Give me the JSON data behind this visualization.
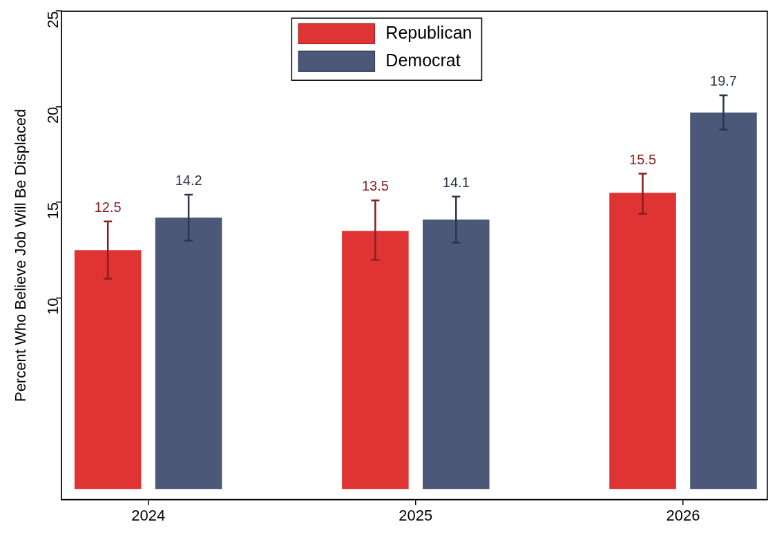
{
  "chart_data": {
    "type": "bar",
    "ylabel": "Percent Who Believe Job Will Be Displaced",
    "categories": [
      "2024",
      "2025",
      "2026"
    ],
    "series": [
      {
        "name": "Republican",
        "color": "#e03434",
        "values": [
          12.5,
          13.5,
          15.5
        ],
        "errors": [
          [
            11.0,
            14.0
          ],
          [
            12.0,
            15.1
          ],
          [
            14.4,
            16.5
          ]
        ]
      },
      {
        "name": "Democrat",
        "color": "#4b5878",
        "values": [
          14.2,
          14.1,
          19.7
        ],
        "errors": [
          [
            13.0,
            15.4
          ],
          [
            12.9,
            15.3
          ],
          [
            18.8,
            20.6
          ]
        ]
      }
    ],
    "ylim": [
      -0.55,
      25
    ],
    "yticks": [
      10,
      15,
      20,
      25
    ],
    "data_labels": true,
    "legend": "top",
    "grid": false
  }
}
